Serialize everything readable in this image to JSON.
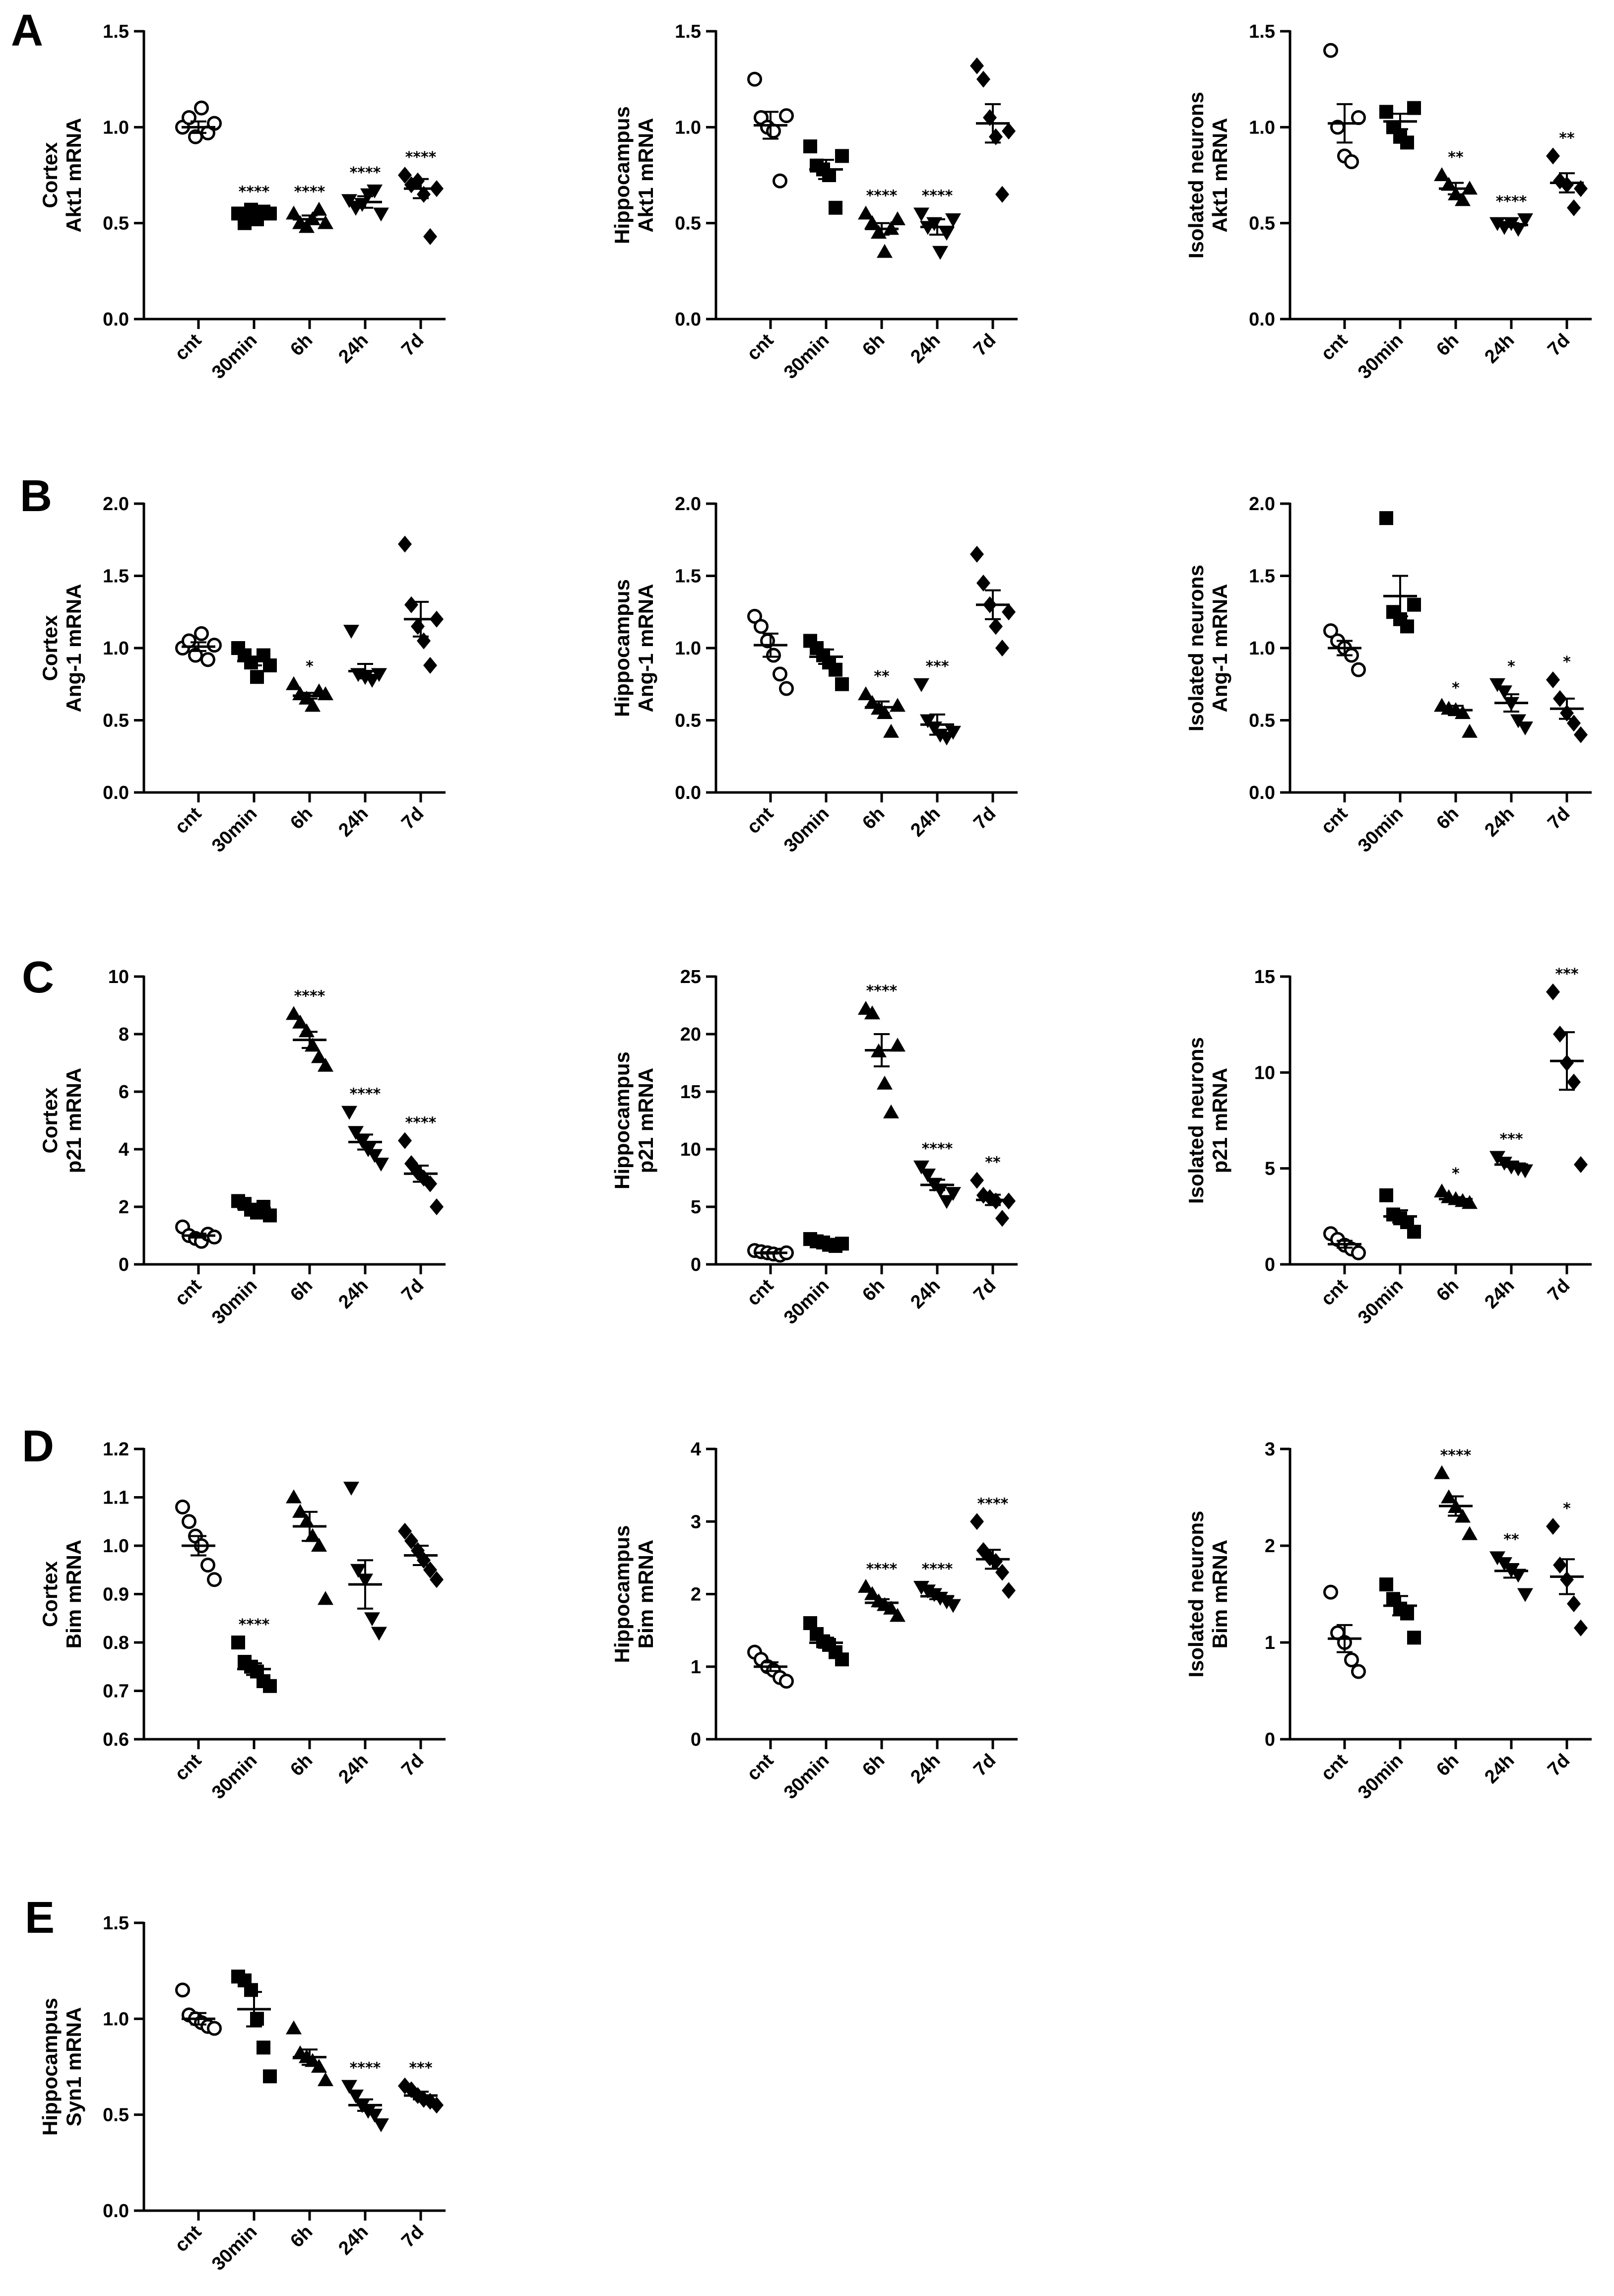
{
  "figure": {
    "panel_letters": [
      "A",
      "B",
      "C",
      "D",
      "E"
    ]
  },
  "chart_data": [
    {
      "id": "A1",
      "type": "scatter",
      "panel": "A",
      "title": "",
      "ylabel": [
        "Cortex",
        "Akt1 mRNA"
      ],
      "xlabel": "",
      "categories": [
        "cnt",
        "30min",
        "6h",
        "24h",
        "7d"
      ],
      "ylim": [
        0,
        1.5
      ],
      "yticks": [
        "0.0",
        "0.5",
        "1.0",
        "1.5"
      ],
      "markers": [
        "circle-open",
        "square",
        "triangle",
        "triangle-down",
        "diamond"
      ],
      "points": [
        [
          1.0,
          1.05,
          0.95,
          1.1,
          0.97,
          1.02
        ],
        [
          0.55,
          0.5,
          0.57,
          0.52,
          0.56,
          0.55
        ],
        [
          0.55,
          0.5,
          0.48,
          0.52,
          0.57,
          0.5
        ],
        [
          0.62,
          0.58,
          0.6,
          0.65,
          0.67,
          0.55
        ],
        [
          0.75,
          0.7,
          0.72,
          0.65,
          0.43,
          0.68
        ]
      ],
      "mean": [
        1.0,
        0.54,
        0.52,
        0.61,
        0.68
      ],
      "sem": [
        0.03,
        0.02,
        0.02,
        0.03,
        0.05
      ],
      "significance": [
        "",
        "****",
        "****",
        "****",
        "****"
      ]
    },
    {
      "id": "A2",
      "type": "scatter",
      "panel": "A",
      "title": "",
      "ylabel": [
        "Hippocampus",
        "Akt1 mRNA"
      ],
      "xlabel": "",
      "categories": [
        "cnt",
        "30min",
        "6h",
        "24h",
        "7d"
      ],
      "ylim": [
        0,
        1.5
      ],
      "yticks": [
        "0.0",
        "0.5",
        "1.0",
        "1.5"
      ],
      "markers": [
        "circle-open",
        "square",
        "triangle",
        "triangle-down",
        "diamond"
      ],
      "points": [
        [
          1.25,
          1.05,
          1.0,
          0.98,
          0.72,
          1.06
        ],
        [
          0.9,
          0.8,
          0.78,
          0.75,
          0.58,
          0.85
        ],
        [
          0.55,
          0.5,
          0.45,
          0.35,
          0.47,
          0.52
        ],
        [
          0.55,
          0.48,
          0.5,
          0.35,
          0.45,
          0.52
        ],
        [
          1.32,
          1.25,
          1.05,
          0.95,
          0.65,
          0.98
        ]
      ],
      "mean": [
        1.01,
        0.78,
        0.47,
        0.48,
        1.02
      ],
      "sem": [
        0.07,
        0.05,
        0.03,
        0.04,
        0.1
      ],
      "significance": [
        "",
        "",
        "****",
        "****",
        ""
      ]
    },
    {
      "id": "A3",
      "type": "scatter",
      "panel": "A",
      "title": "",
      "ylabel": [
        "Isolated neurons",
        "Akt1 mRNA"
      ],
      "xlabel": "",
      "categories": [
        "cnt",
        "30min",
        "6h",
        "24h",
        "7d"
      ],
      "ylim": [
        0,
        1.5
      ],
      "yticks": [
        "0.0",
        "0.5",
        "1.0",
        "1.5"
      ],
      "markers": [
        "circle-open",
        "square",
        "triangle",
        "triangle-down",
        "diamond"
      ],
      "points": [
        [
          1.4,
          1.0,
          0.85,
          0.82,
          1.05
        ],
        [
          1.08,
          1.0,
          0.95,
          0.92,
          1.1
        ],
        [
          0.75,
          0.7,
          0.65,
          0.62,
          0.68
        ],
        [
          0.5,
          0.48,
          0.5,
          0.47,
          0.52
        ],
        [
          0.85,
          0.72,
          0.7,
          0.58,
          0.68
        ]
      ],
      "mean": [
        1.02,
        1.03,
        0.68,
        0.49,
        0.71
      ],
      "sem": [
        0.1,
        0.04,
        0.03,
        0.01,
        0.05
      ],
      "significance": [
        "",
        "",
        "**",
        "****",
        "**"
      ]
    },
    {
      "id": "B1",
      "type": "scatter",
      "panel": "B",
      "title": "",
      "ylabel": [
        "Cortex",
        "Ang-1 mRNA"
      ],
      "xlabel": "",
      "categories": [
        "cnt",
        "30min",
        "6h",
        "24h",
        "7d"
      ],
      "ylim": [
        0,
        2.0
      ],
      "yticks": [
        "0.0",
        "0.5",
        "1.0",
        "1.5",
        "2.0"
      ],
      "markers": [
        "circle-open",
        "square",
        "triangle",
        "triangle-down",
        "diamond"
      ],
      "points": [
        [
          1.0,
          1.05,
          0.95,
          1.1,
          0.92,
          1.02
        ],
        [
          1.0,
          0.95,
          0.9,
          0.8,
          0.95,
          0.88
        ],
        [
          0.75,
          0.68,
          0.65,
          0.6,
          0.7,
          0.68
        ],
        [
          1.12,
          0.82,
          0.8,
          0.78,
          0.82
        ],
        [
          1.72,
          1.3,
          1.15,
          1.05,
          0.88,
          1.2
        ]
      ],
      "mean": [
        1.01,
        0.91,
        0.67,
        0.84,
        1.2
      ],
      "sem": [
        0.03,
        0.03,
        0.02,
        0.05,
        0.12
      ],
      "significance": [
        "",
        "",
        "*",
        "",
        ""
      ]
    },
    {
      "id": "B2",
      "type": "scatter",
      "panel": "B",
      "title": "",
      "ylabel": [
        "Hippocampus",
        "Ang-1 mRNA"
      ],
      "xlabel": "",
      "categories": [
        "cnt",
        "30min",
        "6h",
        "24h",
        "7d"
      ],
      "ylim": [
        0,
        2.0
      ],
      "yticks": [
        "0.0",
        "0.5",
        "1.0",
        "1.5",
        "2.0"
      ],
      "markers": [
        "circle-open",
        "square",
        "triangle",
        "triangle-down",
        "diamond"
      ],
      "points": [
        [
          1.22,
          1.15,
          1.05,
          0.95,
          0.82,
          0.72
        ],
        [
          1.05,
          1.0,
          0.95,
          0.9,
          0.85,
          0.75
        ],
        [
          0.68,
          0.62,
          0.58,
          0.55,
          0.42,
          0.6
        ],
        [
          0.75,
          0.5,
          0.45,
          0.4,
          0.38,
          0.42
        ],
        [
          1.65,
          1.45,
          1.3,
          1.15,
          1.0,
          1.25
        ]
      ],
      "mean": [
        1.02,
        0.94,
        0.59,
        0.47,
        1.3
      ],
      "sem": [
        0.08,
        0.05,
        0.04,
        0.07,
        0.1
      ],
      "significance": [
        "",
        "",
        "**",
        "***",
        ""
      ]
    },
    {
      "id": "B3",
      "type": "scatter",
      "panel": "B",
      "title": "",
      "ylabel": [
        "Isolated neurons",
        "Ang-1 mRNA"
      ],
      "xlabel": "",
      "categories": [
        "cnt",
        "30min",
        "6h",
        "24h",
        "7d"
      ],
      "ylim": [
        0,
        2.0
      ],
      "yticks": [
        "0.0",
        "0.5",
        "1.0",
        "1.5",
        "2.0"
      ],
      "markers": [
        "circle-open",
        "square",
        "triangle",
        "triangle-down",
        "diamond"
      ],
      "points": [
        [
          1.12,
          1.05,
          1.0,
          0.95,
          0.85
        ],
        [
          1.9,
          1.25,
          1.2,
          1.15,
          1.3
        ],
        [
          0.6,
          0.58,
          0.57,
          0.55,
          0.42
        ],
        [
          0.75,
          0.7,
          0.62,
          0.5,
          0.45
        ],
        [
          0.78,
          0.65,
          0.55,
          0.48,
          0.4
        ]
      ],
      "mean": [
        1.0,
        1.36,
        0.57,
        0.62,
        0.58
      ],
      "sem": [
        0.05,
        0.14,
        0.03,
        0.06,
        0.07
      ],
      "significance": [
        "",
        "",
        "*",
        "*",
        "*"
      ]
    },
    {
      "id": "C1",
      "type": "scatter",
      "panel": "C",
      "title": "",
      "ylabel": [
        "Cortex",
        "p21 mRNA"
      ],
      "xlabel": "",
      "categories": [
        "cnt",
        "30min",
        "6h",
        "24h",
        "7d"
      ],
      "ylim": [
        0,
        10
      ],
      "yticks": [
        "0",
        "2",
        "4",
        "6",
        "8",
        "10"
      ],
      "markers": [
        "circle-open",
        "square",
        "triangle",
        "triangle-down",
        "diamond"
      ],
      "points": [
        [
          1.3,
          1.0,
          0.9,
          0.8,
          1.05,
          0.95
        ],
        [
          2.2,
          2.1,
          1.9,
          1.8,
          2.0,
          1.7
        ],
        [
          8.7,
          8.4,
          8.1,
          7.6,
          7.2,
          6.9
        ],
        [
          5.3,
          4.6,
          4.3,
          4.0,
          3.8,
          3.5
        ],
        [
          4.3,
          3.5,
          3.2,
          3.0,
          2.8,
          2.0
        ]
      ],
      "mean": [
        1.0,
        1.95,
        7.8,
        4.25,
        3.15
      ],
      "sem": [
        0.07,
        0.08,
        0.28,
        0.26,
        0.28
      ],
      "significance": [
        "",
        "",
        "****",
        "****",
        "****"
      ]
    },
    {
      "id": "C2",
      "type": "scatter",
      "panel": "C",
      "title": "",
      "ylabel": [
        "Hippocampus",
        "p21 mRNA"
      ],
      "xlabel": "",
      "categories": [
        "cnt",
        "30min",
        "6h",
        "24h",
        "7d"
      ],
      "ylim": [
        0,
        25
      ],
      "yticks": [
        "0",
        "5",
        "10",
        "15",
        "20",
        "25"
      ],
      "markers": [
        "circle-open",
        "square",
        "triangle",
        "triangle-down",
        "diamond"
      ],
      "points": [
        [
          1.2,
          1.1,
          1.0,
          0.9,
          0.8,
          1.0
        ],
        [
          2.2,
          2.0,
          1.9,
          1.7,
          1.6,
          1.8
        ],
        [
          22.2,
          21.8,
          18.5,
          15.7,
          13.2,
          19.0
        ],
        [
          8.5,
          7.8,
          7.0,
          6.5,
          5.5,
          6.2
        ],
        [
          7.3,
          6.0,
          5.8,
          5.5,
          4.0,
          5.5
        ]
      ],
      "mean": [
        1.0,
        1.85,
        18.6,
        6.9,
        5.6
      ],
      "sem": [
        0.06,
        0.09,
        1.4,
        0.45,
        0.45
      ],
      "significance": [
        "",
        "",
        "****",
        "****",
        "**"
      ]
    },
    {
      "id": "C3",
      "type": "scatter",
      "panel": "C",
      "title": "",
      "ylabel": [
        "Isolated neurons",
        "p21 mRNA"
      ],
      "xlabel": "",
      "categories": [
        "cnt",
        "30min",
        "6h",
        "24h",
        "7d"
      ],
      "ylim": [
        0,
        15
      ],
      "yticks": [
        "0",
        "5",
        "10",
        "15"
      ],
      "markers": [
        "circle-open",
        "square",
        "triangle",
        "triangle-down",
        "diamond"
      ],
      "points": [
        [
          1.6,
          1.3,
          1.0,
          0.8,
          0.6
        ],
        [
          3.6,
          2.6,
          2.4,
          2.2,
          1.7
        ],
        [
          3.8,
          3.5,
          3.4,
          3.3,
          3.2
        ],
        [
          5.6,
          5.3,
          5.1,
          5.0,
          4.9
        ],
        [
          14.2,
          12.0,
          10.5,
          9.5,
          5.2
        ]
      ],
      "mean": [
        1.05,
        2.5,
        3.4,
        5.2,
        10.6
      ],
      "sem": [
        0.18,
        0.32,
        0.1,
        0.12,
        1.5
      ],
      "significance": [
        "",
        "",
        "*",
        "***",
        "***"
      ]
    },
    {
      "id": "D1",
      "type": "scatter",
      "panel": "D",
      "title": "",
      "ylabel": [
        "Cortex",
        "Bim mRNA"
      ],
      "xlabel": "",
      "categories": [
        "cnt",
        "30min",
        "6h",
        "24h",
        "7d"
      ],
      "ylim": [
        0.6,
        1.2
      ],
      "yticks": [
        "0.6",
        "0.7",
        "0.8",
        "0.9",
        "1.0",
        "1.1",
        "1.2"
      ],
      "markers": [
        "circle-open",
        "square",
        "triangle",
        "triangle-down",
        "diamond"
      ],
      "points": [
        [
          1.08,
          1.05,
          1.02,
          1.0,
          0.96,
          0.93
        ],
        [
          0.8,
          0.76,
          0.75,
          0.74,
          0.72,
          0.71
        ],
        [
          1.1,
          1.07,
          1.05,
          1.02,
          1.0,
          0.89
        ],
        [
          1.12,
          0.95,
          0.93,
          0.85,
          0.82
        ],
        [
          1.03,
          1.01,
          0.99,
          0.97,
          0.95,
          0.93
        ]
      ],
      "mean": [
        1.0,
        0.745,
        1.04,
        0.92,
        0.98
      ],
      "sem": [
        0.02,
        0.012,
        0.03,
        0.05,
        0.02
      ],
      "significance": [
        "",
        "****",
        "",
        "",
        ""
      ]
    },
    {
      "id": "D2",
      "type": "scatter",
      "panel": "D",
      "title": "",
      "ylabel": [
        "Hippocampus",
        "Bim mRNA"
      ],
      "xlabel": "",
      "categories": [
        "cnt",
        "30min",
        "6h",
        "24h",
        "7d"
      ],
      "ylim": [
        0,
        4
      ],
      "yticks": [
        "0",
        "1",
        "2",
        "3",
        "4"
      ],
      "markers": [
        "circle-open",
        "square",
        "triangle",
        "triangle-down",
        "diamond"
      ],
      "points": [
        [
          1.2,
          1.1,
          1.0,
          0.95,
          0.85,
          0.8
        ],
        [
          1.6,
          1.45,
          1.35,
          1.3,
          1.2,
          1.1
        ],
        [
          2.1,
          2.0,
          1.9,
          1.85,
          1.8,
          1.7
        ],
        [
          2.1,
          2.05,
          2.0,
          1.95,
          1.9,
          1.85
        ],
        [
          3.0,
          2.6,
          2.5,
          2.45,
          2.3,
          2.05
        ]
      ],
      "mean": [
        1.0,
        1.33,
        1.88,
        1.97,
        2.48
      ],
      "sem": [
        0.06,
        0.07,
        0.05,
        0.04,
        0.13
      ],
      "significance": [
        "",
        "",
        "****",
        "****",
        "****"
      ]
    },
    {
      "id": "D3",
      "type": "scatter",
      "panel": "D",
      "title": "",
      "ylabel": [
        "Isolated neurons",
        "Bim mRNA"
      ],
      "xlabel": "",
      "categories": [
        "cnt",
        "30min",
        "6h",
        "24h",
        "7d"
      ],
      "ylim": [
        0,
        3
      ],
      "yticks": [
        "0",
        "1",
        "2",
        "3"
      ],
      "markers": [
        "circle-open",
        "square",
        "triangle",
        "triangle-down",
        "diamond"
      ],
      "points": [
        [
          1.52,
          1.1,
          1.0,
          0.82,
          0.7
        ],
        [
          1.6,
          1.45,
          1.35,
          1.3,
          1.05
        ],
        [
          2.75,
          2.5,
          2.4,
          2.3,
          2.12
        ],
        [
          1.88,
          1.82,
          1.75,
          1.7,
          1.5
        ],
        [
          2.2,
          1.8,
          1.65,
          1.4,
          1.15
        ]
      ],
      "mean": [
        1.04,
        1.38,
        2.41,
        1.74,
        1.68
      ],
      "sem": [
        0.14,
        0.1,
        0.1,
        0.07,
        0.18
      ],
      "significance": [
        "",
        "",
        "****",
        "**",
        "*"
      ]
    },
    {
      "id": "E1",
      "type": "scatter",
      "panel": "E",
      "title": "",
      "ylabel": [
        "Hippocampus",
        "Syn1 mRNA"
      ],
      "xlabel": "",
      "categories": [
        "cnt",
        "30min",
        "6h",
        "24h",
        "7d"
      ],
      "ylim": [
        0,
        1.5
      ],
      "yticks": [
        "0.0",
        "0.5",
        "1.0",
        "1.5"
      ],
      "markers": [
        "circle-open",
        "square",
        "triangle",
        "triangle-down",
        "diamond"
      ],
      "points": [
        [
          1.15,
          1.02,
          1.0,
          0.98,
          0.96,
          0.95
        ],
        [
          1.22,
          1.2,
          1.15,
          1.0,
          0.85,
          0.7
        ],
        [
          0.95,
          0.82,
          0.8,
          0.78,
          0.75,
          0.68
        ],
        [
          0.65,
          0.6,
          0.55,
          0.52,
          0.5,
          0.45
        ],
        [
          0.65,
          0.63,
          0.6,
          0.58,
          0.57,
          0.55
        ]
      ],
      "mean": [
        1.0,
        1.05,
        0.8,
        0.55,
        0.6
      ],
      "sem": [
        0.03,
        0.09,
        0.04,
        0.03,
        0.02
      ],
      "significance": [
        "",
        "",
        "",
        "****",
        "***"
      ]
    }
  ]
}
